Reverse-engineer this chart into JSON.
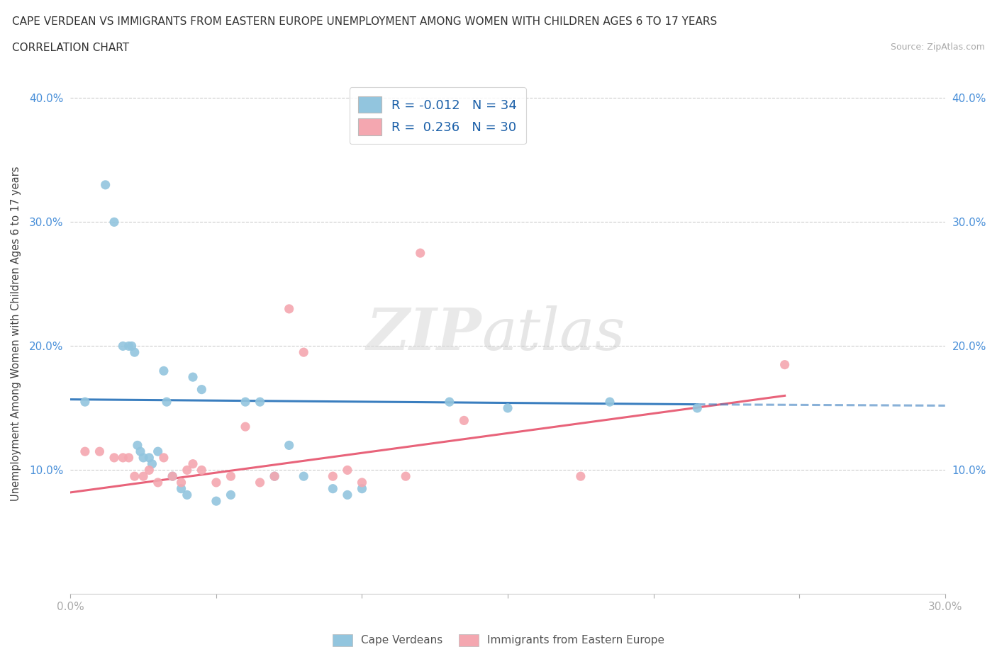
{
  "title_line1": "CAPE VERDEAN VS IMMIGRANTS FROM EASTERN EUROPE UNEMPLOYMENT AMONG WOMEN WITH CHILDREN AGES 6 TO 17 YEARS",
  "title_line2": "CORRELATION CHART",
  "source": "Source: ZipAtlas.com",
  "ylabel": "Unemployment Among Women with Children Ages 6 to 17 years",
  "xlim": [
    0.0,
    0.3
  ],
  "ylim": [
    0.0,
    0.42
  ],
  "xticks": [
    0.0,
    0.05,
    0.1,
    0.15,
    0.2,
    0.25,
    0.3
  ],
  "yticks": [
    0.0,
    0.1,
    0.2,
    0.3,
    0.4
  ],
  "ytick_labels": [
    "",
    "10.0%",
    "20.0%",
    "30.0%",
    "40.0%"
  ],
  "xtick_labels": [
    "0.0%",
    "",
    "",
    "",
    "",
    "",
    "30.0%"
  ],
  "blue_R": -0.012,
  "blue_N": 34,
  "pink_R": 0.236,
  "pink_N": 30,
  "blue_color": "#92c5de",
  "pink_color": "#f4a7b0",
  "trend_blue": "#3a7ebf",
  "trend_pink": "#e8637a",
  "watermark_zip": "ZIP",
  "watermark_atlas": "atlas",
  "legend_label_blue": "Cape Verdeans",
  "legend_label_pink": "Immigrants from Eastern Europe",
  "blue_scatter_x": [
    0.005,
    0.012,
    0.015,
    0.018,
    0.02,
    0.021,
    0.022,
    0.023,
    0.024,
    0.025,
    0.027,
    0.028,
    0.03,
    0.032,
    0.033,
    0.035,
    0.038,
    0.04,
    0.042,
    0.045,
    0.05,
    0.055,
    0.06,
    0.065,
    0.07,
    0.075,
    0.08,
    0.09,
    0.095,
    0.1,
    0.13,
    0.15,
    0.185,
    0.215
  ],
  "blue_scatter_y": [
    0.155,
    0.33,
    0.3,
    0.2,
    0.2,
    0.2,
    0.195,
    0.12,
    0.115,
    0.11,
    0.11,
    0.105,
    0.115,
    0.18,
    0.155,
    0.095,
    0.085,
    0.08,
    0.175,
    0.165,
    0.075,
    0.08,
    0.155,
    0.155,
    0.095,
    0.12,
    0.095,
    0.085,
    0.08,
    0.085,
    0.155,
    0.15,
    0.155,
    0.15
  ],
  "pink_scatter_x": [
    0.005,
    0.01,
    0.015,
    0.018,
    0.02,
    0.022,
    0.025,
    0.027,
    0.03,
    0.032,
    0.035,
    0.038,
    0.04,
    0.042,
    0.045,
    0.05,
    0.055,
    0.06,
    0.065,
    0.07,
    0.075,
    0.08,
    0.09,
    0.095,
    0.1,
    0.115,
    0.12,
    0.135,
    0.175,
    0.245
  ],
  "pink_scatter_y": [
    0.115,
    0.115,
    0.11,
    0.11,
    0.11,
    0.095,
    0.095,
    0.1,
    0.09,
    0.11,
    0.095,
    0.09,
    0.1,
    0.105,
    0.1,
    0.09,
    0.095,
    0.135,
    0.09,
    0.095,
    0.23,
    0.195,
    0.095,
    0.1,
    0.09,
    0.095,
    0.275,
    0.14,
    0.095,
    0.185
  ],
  "blue_trend_x": [
    0.0,
    0.215
  ],
  "blue_trend_y": [
    0.157,
    0.153
  ],
  "pink_trend_x": [
    0.0,
    0.245
  ],
  "pink_trend_y": [
    0.082,
    0.16
  ]
}
